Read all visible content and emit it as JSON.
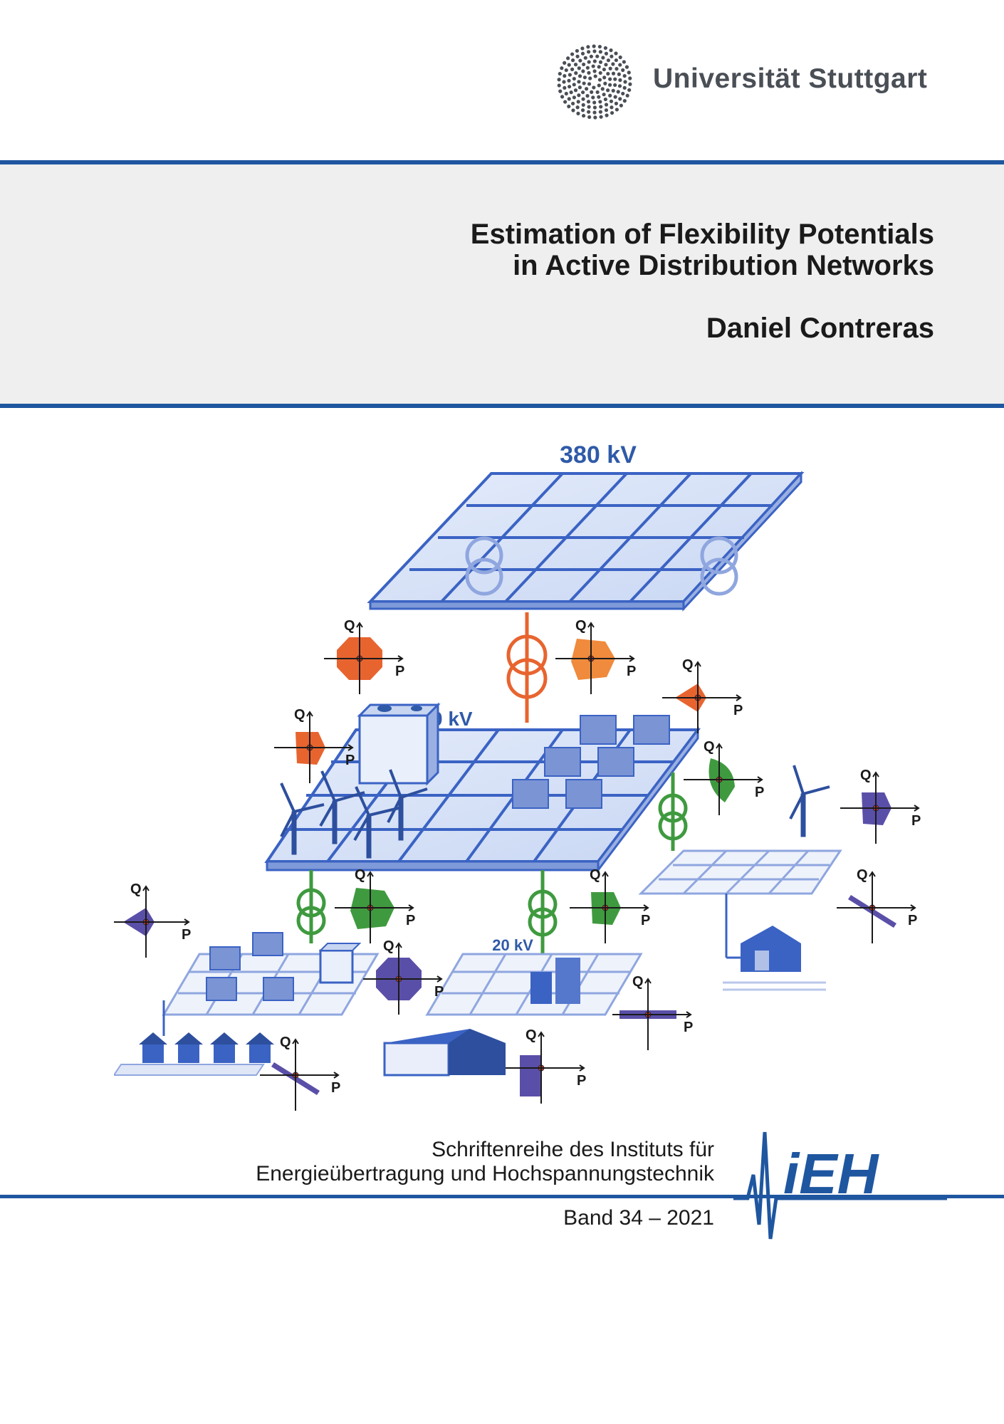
{
  "header": {
    "university_name": "Universität Stuttgart",
    "logo_icon": "dot-circle-logo-icon"
  },
  "title_band": {
    "title_line1": "Estimation of Flexibility Potentials",
    "title_line2": "in Active Distribution Networks",
    "author": "Daniel Contreras"
  },
  "illustration": {
    "voltage_380": "380 kV",
    "voltage_110": "110 kV",
    "voltage_20": "20 kV",
    "axis_q": "Q",
    "axis_p": "P",
    "colors": {
      "grid_blue": "#3b63c4",
      "orange": "#e8642f",
      "light_orange": "#f08a3c",
      "green": "#3f9a3f",
      "purple": "#5a4fa8"
    }
  },
  "series": {
    "line1": "Schriftenreihe des Instituts für",
    "line2": "Energieübertragung und Hochspannungstechnik",
    "band": "Band 34 – 2021",
    "institute_logo": "iEH"
  }
}
